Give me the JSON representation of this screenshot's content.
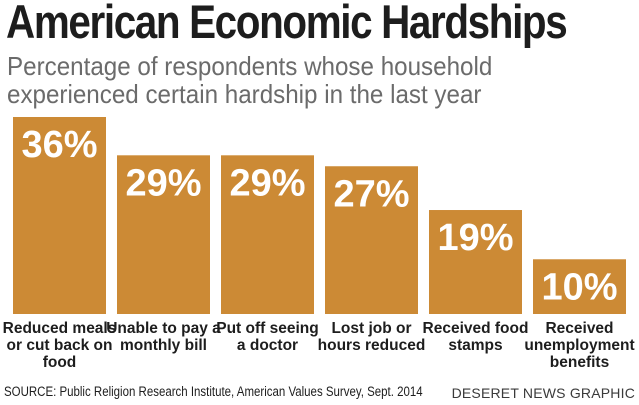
{
  "chart_data": {
    "type": "bar",
    "title": "American Economic Hardships",
    "subtitle": [
      "Percentage of respondents whose household",
      "experienced certain hardship in the last year"
    ],
    "categories": [
      [
        "Reduced meals",
        "or cut back on",
        "food"
      ],
      [
        "Unable to pay a",
        "monthly bill"
      ],
      [
        "Put off seeing",
        "a doctor"
      ],
      [
        "Lost job or",
        "hours reduced"
      ],
      [
        "Received food",
        "stamps"
      ],
      [
        "Received",
        "unemployment",
        "benefits"
      ]
    ],
    "values": [
      36,
      29,
      29,
      27,
      19,
      10
    ],
    "value_labels": [
      "36%",
      "29%",
      "29%",
      "27%",
      "19%",
      "10%"
    ],
    "unit": "%",
    "ylim": [
      0,
      36
    ],
    "grid": false,
    "legend": "none",
    "colors": {
      "bar": "#cc8a35",
      "value_text": "#ffffff",
      "title": "#1d1d1d",
      "subtitle": "#6b6b6b"
    }
  },
  "footer": {
    "source": "SOURCE: Public Religion Research Institute, American Values Survey, Sept. 2014",
    "credit": "DESERET NEWS GRAPHIC"
  }
}
